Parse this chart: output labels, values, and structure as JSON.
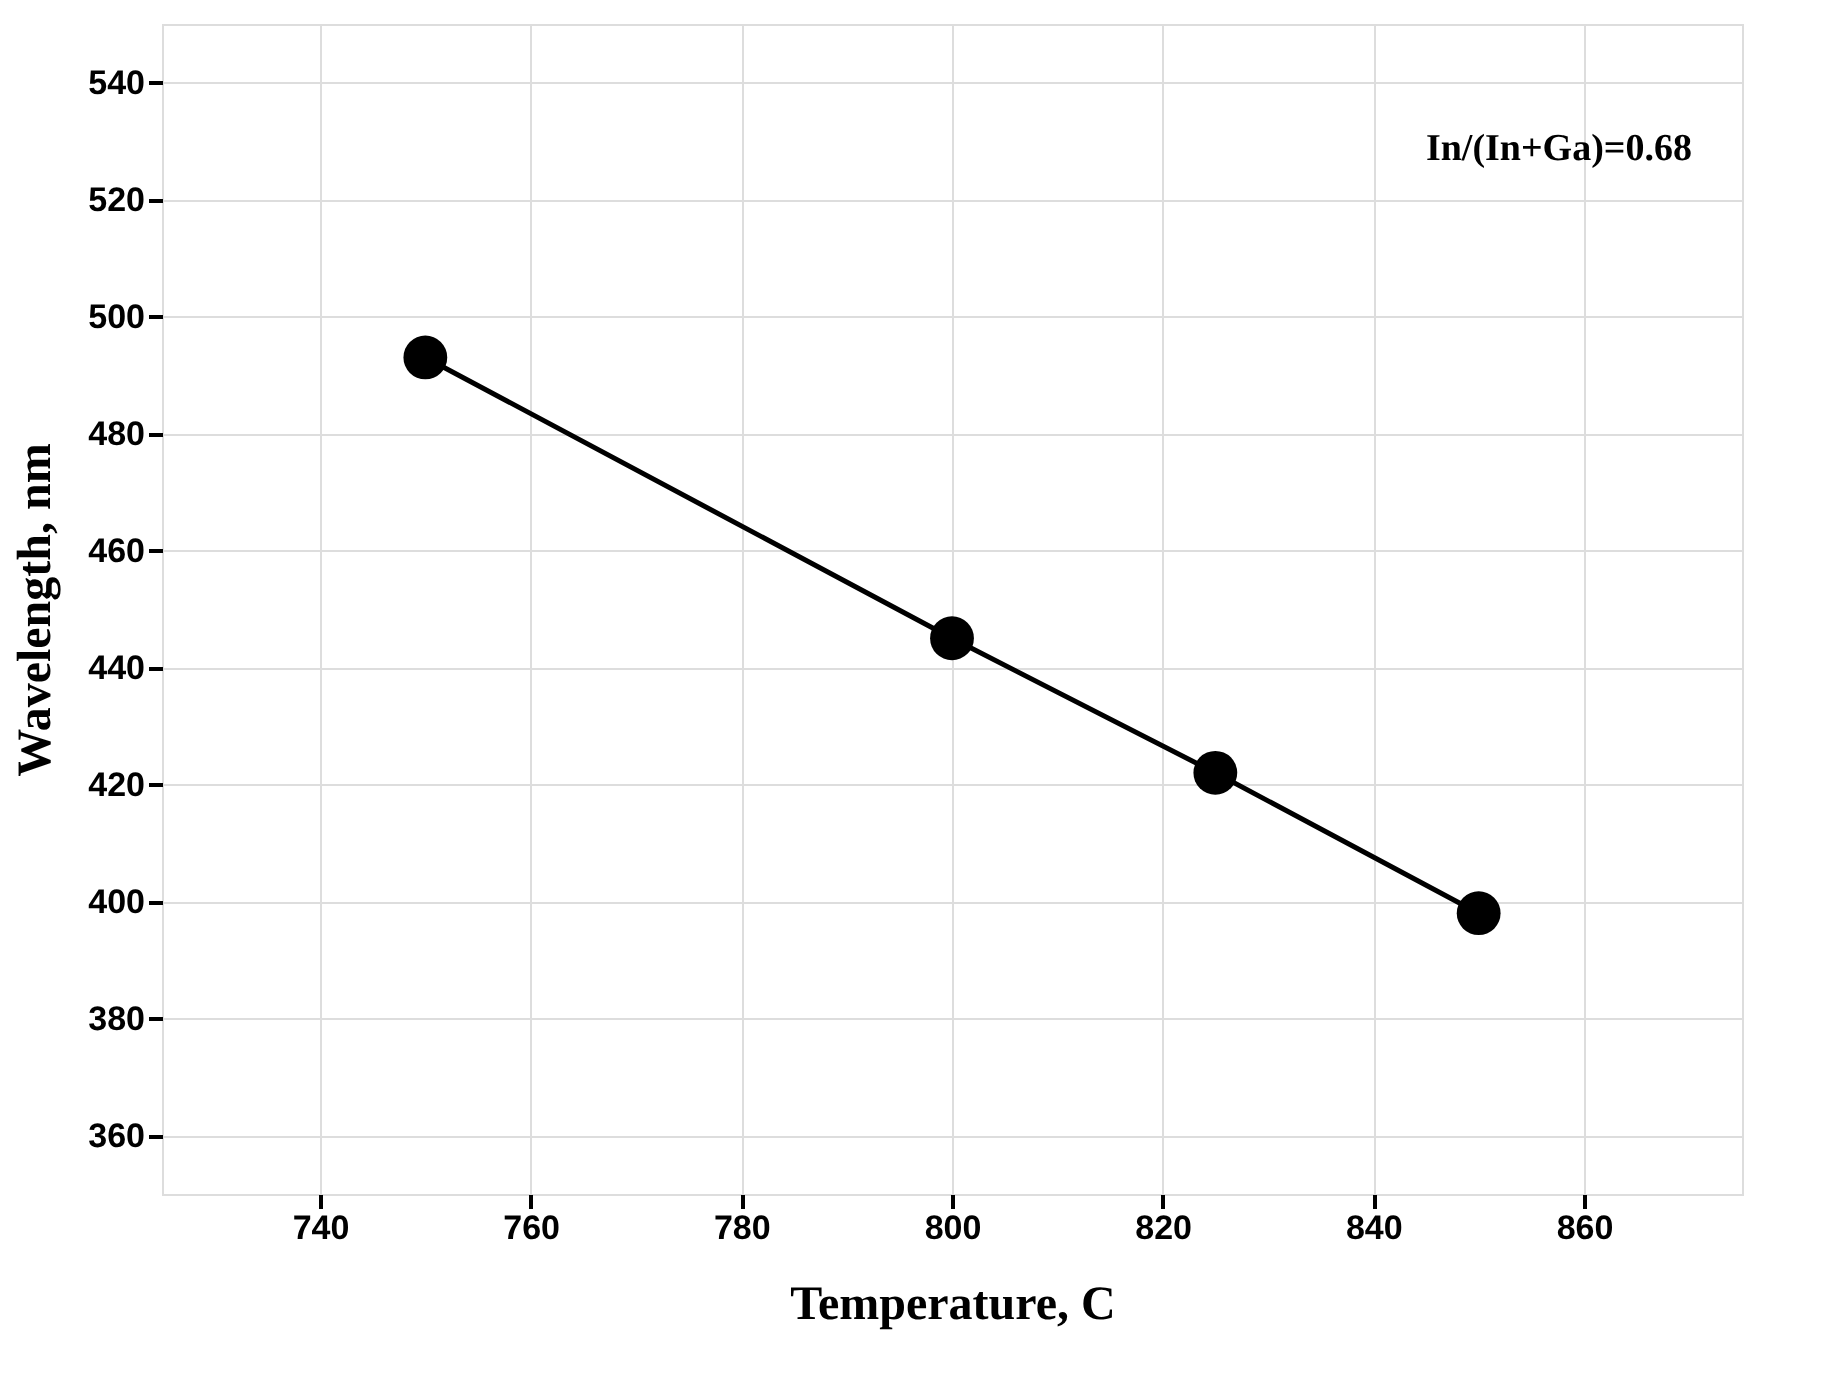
{
  "chart_data": {
    "type": "line",
    "xlabel": "Temperature, C",
    "ylabel": "Wavelength, nm",
    "x": [
      750,
      800,
      825,
      850
    ],
    "series": [
      {
        "color": "#000000",
        "values": [
          493,
          445,
          422,
          398
        ]
      }
    ],
    "marker": "circle",
    "line_style": "solid",
    "xlim": [
      725,
      875
    ],
    "xticks": [
      740,
      760,
      780,
      800,
      820,
      840,
      860
    ],
    "ylim": [
      350,
      550
    ],
    "yticks": [
      360,
      380,
      400,
      420,
      440,
      460,
      480,
      500,
      520,
      540
    ],
    "grid": true,
    "annotations": [
      "In/(In+Ga)=0.68"
    ]
  }
}
